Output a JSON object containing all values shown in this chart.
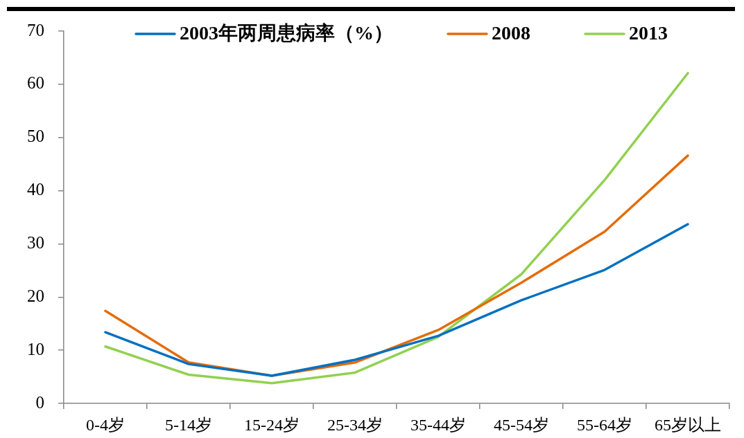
{
  "chart_data": {
    "type": "line",
    "categories": [
      "0-4岁",
      "5-14岁",
      "15-24岁",
      "25-34岁",
      "35-44岁",
      "45-54岁",
      "55-64岁",
      "65岁以上"
    ],
    "series": [
      {
        "name": "2003年两周患病率（%）",
        "color": "#0070c0",
        "values": [
          13.4,
          7.4,
          5.2,
          8.2,
          12.7,
          19.4,
          25.1,
          33.7
        ]
      },
      {
        "name": "2008",
        "color": "#e46c0a",
        "values": [
          17.4,
          7.7,
          5.2,
          7.7,
          13.8,
          22.7,
          32.3,
          46.6
        ]
      },
      {
        "name": "2013",
        "color": "#92d050",
        "values": [
          10.7,
          5.4,
          3.8,
          5.8,
          12.5,
          24.3,
          42,
          62.1
        ]
      }
    ],
    "ylim": [
      0,
      70
    ],
    "yticks": [
      0,
      10,
      20,
      30,
      40,
      50,
      60,
      70
    ],
    "legend": "top",
    "marker": "none",
    "line_style": "solid",
    "grid": false
  }
}
